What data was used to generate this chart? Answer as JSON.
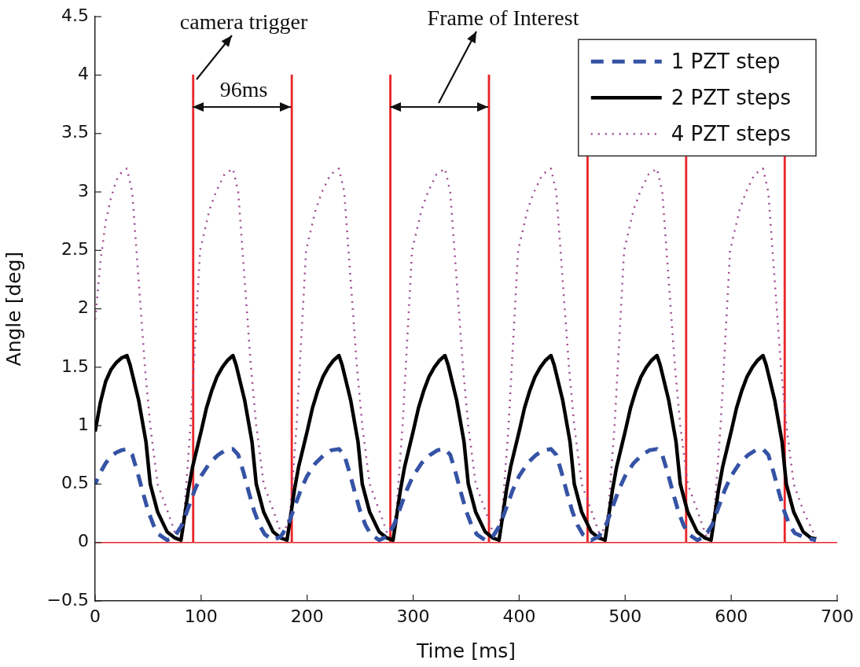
{
  "chart_data": {
    "type": "line",
    "xlabel": "Time [ms]",
    "ylabel": "Angle [deg]",
    "xlim": [
      0,
      700
    ],
    "xticks": [
      0,
      100,
      200,
      300,
      400,
      500,
      600,
      700
    ],
    "ylim": [
      -0.5,
      4.5
    ],
    "yticks": [
      {
        "value": -0.5,
        "label": "−0.5"
      },
      0,
      0.5,
      1,
      1.5,
      2,
      2.5,
      3,
      3.5,
      4,
      4.5
    ],
    "legend": "top right",
    "grid": false,
    "annotations": [
      "camera trigger",
      "96ms",
      "Frame of Interest"
    ],
    "series": [
      {
        "name": "1 PZT step",
        "color": "#3553a5",
        "line_style": "dashed",
        "x": [
          0,
          5,
          10,
          15,
          20,
          25,
          30,
          35,
          40,
          45,
          50,
          55,
          60,
          68,
          75,
          82,
          88,
          94,
          100,
          108,
          116,
          123,
          130,
          135,
          140,
          145,
          150,
          155,
          160,
          168,
          175,
          182,
          188,
          194,
          200,
          208,
          216,
          223,
          230,
          235,
          240,
          245,
          250,
          255,
          260,
          268,
          275,
          282,
          288,
          294,
          300,
          308,
          316,
          323,
          330,
          335,
          340,
          345,
          350,
          355,
          360,
          368,
          375,
          382,
          388,
          394,
          400,
          408,
          416,
          423,
          430,
          435,
          440,
          445,
          450,
          455,
          460,
          468,
          475,
          482,
          488,
          494,
          500,
          508,
          516,
          523,
          530,
          535,
          540,
          545,
          550,
          555,
          560,
          568,
          575,
          582,
          588,
          594,
          600,
          608,
          616,
          623,
          630,
          635,
          640,
          645,
          650,
          655,
          660,
          670,
          680
        ],
        "values": [
          0.5,
          0.6,
          0.68,
          0.74,
          0.77,
          0.79,
          0.8,
          0.75,
          0.6,
          0.43,
          0.27,
          0.15,
          0.07,
          0.02,
          0.05,
          0.15,
          0.3,
          0.45,
          0.57,
          0.68,
          0.75,
          0.79,
          0.8,
          0.75,
          0.6,
          0.43,
          0.27,
          0.15,
          0.07,
          0.02,
          0.05,
          0.15,
          0.3,
          0.45,
          0.57,
          0.68,
          0.75,
          0.79,
          0.8,
          0.75,
          0.6,
          0.43,
          0.27,
          0.15,
          0.07,
          0.02,
          0.05,
          0.15,
          0.3,
          0.45,
          0.57,
          0.68,
          0.75,
          0.79,
          0.8,
          0.75,
          0.6,
          0.43,
          0.27,
          0.15,
          0.07,
          0.02,
          0.05,
          0.15,
          0.3,
          0.45,
          0.57,
          0.68,
          0.75,
          0.79,
          0.8,
          0.75,
          0.6,
          0.43,
          0.27,
          0.15,
          0.07,
          0.02,
          0.05,
          0.15,
          0.3,
          0.45,
          0.57,
          0.68,
          0.75,
          0.79,
          0.8,
          0.75,
          0.6,
          0.43,
          0.27,
          0.15,
          0.07,
          0.02,
          0.05,
          0.15,
          0.3,
          0.45,
          0.57,
          0.68,
          0.75,
          0.79,
          0.8,
          0.75,
          0.6,
          0.43,
          0.27,
          0.15,
          0.08,
          0.04,
          0.02
        ]
      },
      {
        "name": "2 PZT steps",
        "color": "#000000",
        "line_style": "solid",
        "x": [
          0,
          5,
          10,
          15,
          20,
          25,
          30,
          33,
          41,
          48,
          52,
          59,
          68,
          75,
          81,
          84,
          88,
          92,
          96,
          100,
          105,
          110,
          115,
          120,
          125,
          130,
          133,
          141,
          148,
          152,
          159,
          168,
          175,
          181,
          184,
          188,
          192,
          196,
          200,
          205,
          210,
          215,
          220,
          225,
          230,
          233,
          241,
          248,
          252,
          259,
          268,
          275,
          281,
          284,
          288,
          292,
          296,
          300,
          305,
          310,
          315,
          320,
          325,
          330,
          333,
          341,
          348,
          352,
          359,
          368,
          375,
          381,
          384,
          388,
          392,
          396,
          400,
          405,
          410,
          415,
          420,
          425,
          430,
          433,
          441,
          448,
          452,
          459,
          468,
          475,
          481,
          484,
          488,
          492,
          496,
          500,
          505,
          510,
          515,
          520,
          525,
          530,
          533,
          541,
          548,
          552,
          559,
          568,
          575,
          581,
          584,
          588,
          592,
          596,
          600,
          605,
          610,
          615,
          620,
          625,
          630,
          633,
          641,
          648,
          652,
          659,
          668,
          675,
          680
        ],
        "values": [
          0.95,
          1.2,
          1.38,
          1.48,
          1.54,
          1.58,
          1.6,
          1.52,
          1.22,
          0.86,
          0.5,
          0.26,
          0.09,
          0.04,
          0.02,
          0.2,
          0.45,
          0.65,
          0.8,
          0.95,
          1.15,
          1.3,
          1.42,
          1.5,
          1.56,
          1.6,
          1.52,
          1.22,
          0.86,
          0.5,
          0.26,
          0.09,
          0.04,
          0.02,
          0.2,
          0.45,
          0.65,
          0.8,
          0.95,
          1.15,
          1.3,
          1.42,
          1.5,
          1.56,
          1.6,
          1.52,
          1.22,
          0.86,
          0.5,
          0.26,
          0.09,
          0.04,
          0.02,
          0.2,
          0.45,
          0.65,
          0.8,
          0.95,
          1.15,
          1.3,
          1.42,
          1.5,
          1.56,
          1.6,
          1.52,
          1.22,
          0.86,
          0.5,
          0.26,
          0.09,
          0.04,
          0.02,
          0.2,
          0.45,
          0.65,
          0.8,
          0.95,
          1.15,
          1.3,
          1.42,
          1.5,
          1.56,
          1.6,
          1.52,
          1.22,
          0.86,
          0.5,
          0.26,
          0.09,
          0.04,
          0.02,
          0.2,
          0.45,
          0.65,
          0.8,
          0.95,
          1.15,
          1.3,
          1.42,
          1.5,
          1.56,
          1.6,
          1.52,
          1.22,
          0.86,
          0.5,
          0.26,
          0.09,
          0.04,
          0.02,
          0.2,
          0.45,
          0.65,
          0.8,
          0.95,
          1.15,
          1.3,
          1.42,
          1.5,
          1.56,
          1.6,
          1.52,
          1.22,
          0.86,
          0.5,
          0.26,
          0.09,
          0.04,
          0.03
        ]
      },
      {
        "name": "4 PZT steps",
        "color": "#a04a90",
        "line_style": "dotted",
        "x": [
          0,
          5,
          10,
          15,
          20,
          25,
          30,
          35,
          39,
          43,
          47,
          52,
          59,
          69,
          77,
          84,
          86,
          90,
          93,
          96,
          99,
          108,
          114,
          122,
          130,
          135,
          139,
          143,
          147,
          152,
          159,
          169,
          177,
          184,
          186,
          190,
          193,
          196,
          199,
          208,
          214,
          222,
          230,
          235,
          239,
          243,
          247,
          252,
          259,
          269,
          277,
          284,
          286,
          290,
          293,
          296,
          299,
          308,
          314,
          322,
          330,
          335,
          339,
          343,
          347,
          352,
          359,
          369,
          377,
          384,
          386,
          390,
          393,
          396,
          399,
          408,
          414,
          422,
          430,
          435,
          439,
          443,
          447,
          452,
          459,
          469,
          477,
          484,
          486,
          490,
          493,
          496,
          499,
          508,
          514,
          522,
          530,
          535,
          539,
          543,
          547,
          552,
          559,
          569,
          577,
          584,
          586,
          590,
          593,
          596,
          599,
          608,
          614,
          622,
          630,
          635,
          639,
          643,
          647,
          652,
          659,
          669,
          680
        ],
        "values": [
          1.9,
          2.4,
          2.75,
          2.95,
          3.1,
          3.17,
          3.2,
          3.0,
          2.5,
          2.0,
          1.5,
          1.0,
          0.5,
          0.25,
          0.04,
          0.25,
          0.5,
          1.0,
          1.5,
          2.0,
          2.5,
          2.85,
          3.0,
          3.15,
          3.2,
          3.0,
          2.5,
          2.0,
          1.5,
          1.0,
          0.5,
          0.25,
          0.04,
          0.25,
          0.5,
          1.0,
          1.5,
          2.0,
          2.5,
          2.85,
          3.0,
          3.15,
          3.2,
          3.0,
          2.5,
          2.0,
          1.5,
          1.0,
          0.5,
          0.25,
          0.04,
          0.25,
          0.5,
          1.0,
          1.5,
          2.0,
          2.5,
          2.85,
          3.0,
          3.15,
          3.2,
          3.0,
          2.5,
          2.0,
          1.5,
          1.0,
          0.5,
          0.25,
          0.04,
          0.25,
          0.5,
          1.0,
          1.5,
          2.0,
          2.5,
          2.85,
          3.0,
          3.15,
          3.2,
          3.0,
          2.5,
          2.0,
          1.5,
          1.0,
          0.5,
          0.25,
          0.04,
          0.25,
          0.5,
          1.0,
          1.5,
          2.0,
          2.5,
          2.85,
          3.0,
          3.15,
          3.2,
          3.0,
          2.5,
          2.0,
          1.5,
          1.0,
          0.5,
          0.25,
          0.04,
          0.25,
          0.5,
          1.0,
          1.5,
          2.0,
          2.5,
          2.85,
          3.0,
          3.15,
          3.2,
          3.0,
          2.5,
          2.0,
          1.5,
          1.0,
          0.5,
          0.25,
          0.04
        ]
      },
      {
        "color": "#e8262a",
        "line_style": "solid",
        "x": [
          0,
          92,
          92,
          93,
          93,
          185,
          185,
          186,
          186,
          278,
          278,
          279,
          279,
          371,
          371,
          372,
          372,
          464,
          464,
          465,
          465,
          557,
          557,
          558,
          558,
          650,
          650,
          651,
          651,
          700
        ],
        "values": [
          0,
          0,
          4,
          4,
          0,
          0,
          4,
          4,
          0,
          0,
          4,
          4,
          0,
          0,
          4,
          4,
          0,
          0,
          3.3,
          3.3,
          0,
          0,
          3.3,
          3.3,
          0,
          0,
          3.3,
          3.3,
          0,
          0
        ]
      }
    ]
  }
}
